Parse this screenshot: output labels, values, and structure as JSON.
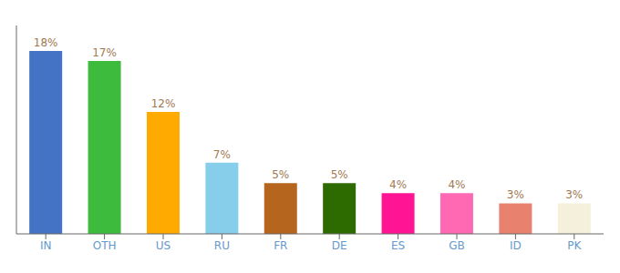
{
  "chart_data": {
    "type": "bar",
    "categories": [
      "IN",
      "OTH",
      "US",
      "RU",
      "FR",
      "DE",
      "ES",
      "GB",
      "ID",
      "PK"
    ],
    "values": [
      18,
      17,
      12,
      7,
      5,
      5,
      4,
      4,
      3,
      3
    ],
    "value_labels": [
      "18%",
      "17%",
      "12%",
      "7%",
      "5%",
      "5%",
      "4%",
      "4%",
      "3%",
      "3%"
    ],
    "colors": [
      "#4472c4",
      "#3dbb3d",
      "#ffaa00",
      "#87ceeb",
      "#b5651d",
      "#2d6a00",
      "#ff1493",
      "#ff69b4",
      "#e8816e",
      "#f5f0dc"
    ],
    "ylim": [
      0,
      20.5
    ],
    "data_labels": true,
    "tick_labels": "x",
    "grid": false
  }
}
